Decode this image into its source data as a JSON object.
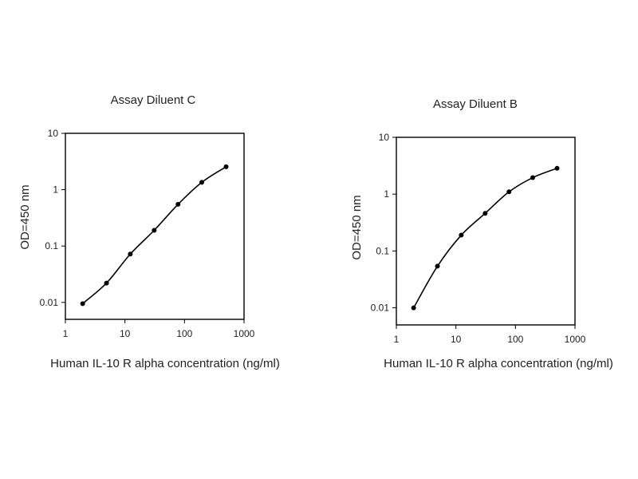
{
  "chart_data": [
    {
      "type": "line",
      "title": "Assay Diluent C",
      "xlabel": "Human IL-10 R alpha concentration (ng/ml)",
      "ylabel": "OD=450 nm",
      "x_scale": "log",
      "y_scale": "log",
      "xlim": [
        1,
        1000
      ],
      "ylim": [
        0.005,
        10
      ],
      "x_ticks": [
        1,
        10,
        100,
        1000
      ],
      "x_tick_labels": [
        "1",
        "10",
        "100",
        "1000"
      ],
      "y_ticks": [
        0.01,
        0.1,
        1,
        10
      ],
      "y_tick_labels": [
        "0.01",
        "0.1",
        "1",
        "10"
      ],
      "grid": false,
      "series": [
        {
          "x": [
            1.95,
            4.9,
            12.3,
            31,
            78,
            195,
            500
          ],
          "y": [
            0.0095,
            0.022,
            0.072,
            0.19,
            0.55,
            1.35,
            2.55
          ]
        }
      ]
    },
    {
      "type": "line",
      "title": "Assay Diluent B",
      "xlabel": "Human IL-10 R alpha concentration (ng/ml)",
      "ylabel": "OD=450 nm",
      "x_scale": "log",
      "y_scale": "log",
      "xlim": [
        1,
        1000
      ],
      "ylim": [
        0.005,
        10
      ],
      "x_ticks": [
        1,
        10,
        100,
        1000
      ],
      "x_tick_labels": [
        "1",
        "10",
        "100",
        "1000"
      ],
      "y_ticks": [
        0.01,
        0.1,
        1,
        10
      ],
      "y_tick_labels": [
        "0.01",
        "0.1",
        "1",
        "10"
      ],
      "grid": false,
      "series": [
        {
          "x": [
            1.95,
            4.9,
            12.3,
            31,
            78,
            195,
            500
          ],
          "y": [
            0.01,
            0.054,
            0.19,
            0.46,
            1.1,
            1.95,
            2.85
          ]
        }
      ]
    }
  ]
}
